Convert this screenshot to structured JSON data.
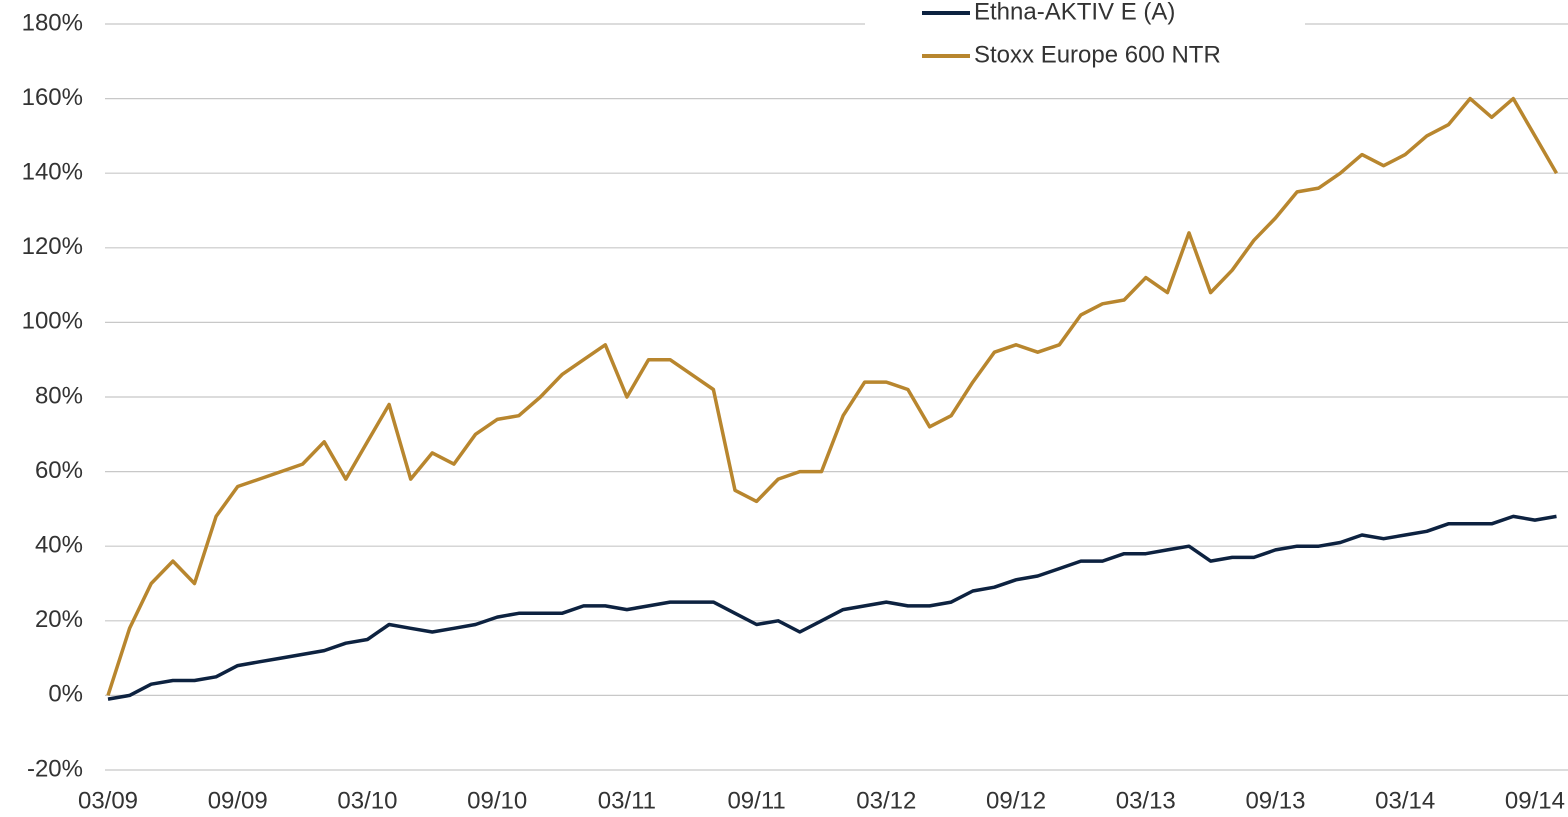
{
  "chart_data": {
    "type": "line",
    "categories": [
      "03/09",
      null,
      null,
      null,
      null,
      null,
      "09/09",
      null,
      null,
      null,
      null,
      null,
      "03/10",
      null,
      null,
      null,
      null,
      null,
      "09/10",
      null,
      null,
      null,
      null,
      null,
      "03/11",
      null,
      null,
      null,
      null,
      null,
      "09/11",
      null,
      null,
      null,
      null,
      null,
      "03/12",
      null,
      null,
      null,
      null,
      null,
      "09/12",
      null,
      null,
      null,
      null,
      null,
      "03/13",
      null,
      null,
      null,
      null,
      null,
      "09/13",
      null,
      null,
      null,
      null,
      null,
      "03/14",
      null,
      null,
      null,
      null,
      null,
      "09/14",
      null
    ],
    "series": [
      {
        "name": "Ethna-AKTIV E (A)",
        "color": "#0d2240",
        "values": [
          -1,
          0,
          3,
          4,
          4,
          5,
          8,
          9,
          10,
          11,
          12,
          14,
          15,
          19,
          18,
          17,
          18,
          19,
          21,
          22,
          22,
          22,
          24,
          24,
          23,
          24,
          25,
          25,
          25,
          22,
          19,
          20,
          17,
          20,
          23,
          24,
          25,
          24,
          24,
          25,
          28,
          29,
          31,
          32,
          34,
          36,
          36,
          38,
          38,
          39,
          40,
          36,
          37,
          37,
          39,
          40,
          40,
          41,
          43,
          42,
          43,
          44,
          46,
          46,
          46,
          48,
          47,
          48
        ]
      },
      {
        "name": "Stoxx Europe 600 NTR",
        "color": "#b8862e",
        "values": [
          0,
          18,
          30,
          36,
          30,
          48,
          56,
          58,
          60,
          62,
          68,
          58,
          68,
          78,
          58,
          65,
          62,
          70,
          74,
          75,
          80,
          86,
          90,
          94,
          80,
          90,
          90,
          86,
          82,
          55,
          52,
          58,
          60,
          60,
          75,
          84,
          84,
          82,
          72,
          75,
          84,
          92,
          94,
          92,
          94,
          102,
          105,
          106,
          112,
          108,
          124,
          108,
          114,
          122,
          128,
          135,
          136,
          140,
          145,
          142,
          145,
          150,
          153,
          160,
          155,
          160,
          150,
          140
        ]
      }
    ],
    "ylim": [
      -20,
      180
    ],
    "yticks": [
      {
        "value": -20,
        "label": "-20%"
      },
      {
        "value": 0,
        "label": "0%"
      },
      {
        "value": 20,
        "label": "20%"
      },
      {
        "value": 40,
        "label": "40%"
      },
      {
        "value": 60,
        "label": "60%"
      },
      {
        "value": 80,
        "label": "80%"
      },
      {
        "value": 100,
        "label": "100%"
      },
      {
        "value": 120,
        "label": "120%"
      },
      {
        "value": 140,
        "label": "140%"
      },
      {
        "value": 160,
        "label": "160%"
      },
      {
        "value": 180,
        "label": "180%"
      }
    ],
    "grid": true,
    "legend": "top-right"
  }
}
